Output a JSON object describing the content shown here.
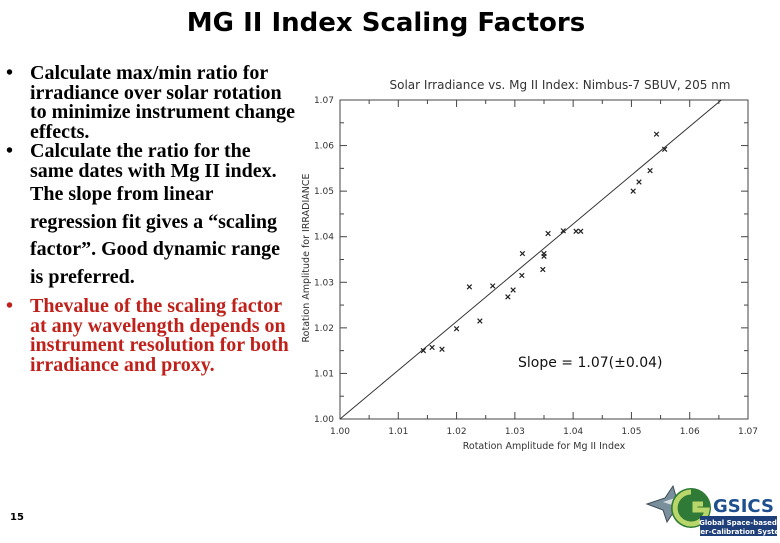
{
  "slide": {
    "title": "MG II Index Scaling Factors",
    "slide_number": "15",
    "bullet_1": "Calculate max/min ratio for irradiance over solar rotation to minimize instrument change effects.",
    "bullet_2": "Calculate the ratio for the same dates with Mg II index.",
    "continuation": "The slope from linear regression fit gives a “scaling factor”. Good dynamic range is preferred.",
    "bullet_3": "Thevalue of the scaling factor at any wavelength depends on instrument resolution for both irradiance and proxy.",
    "bullet_symbol": "•",
    "accent_color": "#c0201a"
  },
  "logo": {
    "brand": "GSICS",
    "line1": "Global Space-based",
    "line2": "Inter-Calibration System"
  },
  "chart_data": {
    "type": "scatter",
    "title": "Solar Irradiance vs. Mg II Index:  Nimbus-7 SBUV, 205 nm",
    "xlabel": "Rotation Amplitude for Mg II Index",
    "ylabel": "Rotation Amplitude for IRRADIANCE",
    "xlim": [
      1.0,
      1.07
    ],
    "ylim": [
      1.0,
      1.07
    ],
    "xticks": [
      "1.00",
      "1.01",
      "1.02",
      "1.03",
      "1.04",
      "1.05",
      "1.06",
      "1.07"
    ],
    "yticks": [
      "1.00",
      "1.01",
      "1.02",
      "1.03",
      "1.04",
      "1.05",
      "1.06",
      "1.07"
    ],
    "grid": false,
    "points": [
      {
        "x": 1.0143,
        "y": 1.015
      },
      {
        "x": 1.0158,
        "y": 1.0157
      },
      {
        "x": 1.0175,
        "y": 1.0153
      },
      {
        "x": 1.02,
        "y": 1.0198
      },
      {
        "x": 1.0222,
        "y": 1.029
      },
      {
        "x": 1.024,
        "y": 1.0215
      },
      {
        "x": 1.0262,
        "y": 1.0292
      },
      {
        "x": 1.0288,
        "y": 1.0268
      },
      {
        "x": 1.0297,
        "y": 1.0283
      },
      {
        "x": 1.0312,
        "y": 1.0315
      },
      {
        "x": 1.0313,
        "y": 1.0363
      },
      {
        "x": 1.0348,
        "y": 1.0328
      },
      {
        "x": 1.035,
        "y": 1.0357
      },
      {
        "x": 1.035,
        "y": 1.0363
      },
      {
        "x": 1.0357,
        "y": 1.0407
      },
      {
        "x": 1.0383,
        "y": 1.0413
      },
      {
        "x": 1.0405,
        "y": 1.0412
      },
      {
        "x": 1.0413,
        "y": 1.0412
      },
      {
        "x": 1.0503,
        "y": 1.05
      },
      {
        "x": 1.0513,
        "y": 1.052
      },
      {
        "x": 1.0532,
        "y": 1.0545
      },
      {
        "x": 1.0543,
        "y": 1.0625
      },
      {
        "x": 1.0557,
        "y": 1.0592
      }
    ],
    "fit_line": {
      "slope": 1.07,
      "intercept": -0.07
    },
    "annotation": "Slope = 1.07(±0.04)",
    "colors": {
      "axes": "#444444",
      "points": "#222222",
      "fit": "#333333"
    }
  }
}
